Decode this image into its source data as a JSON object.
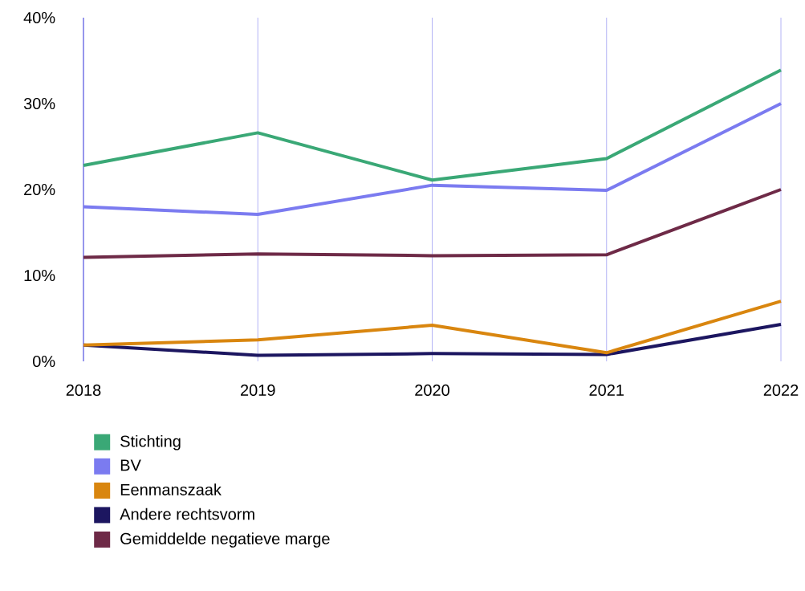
{
  "chart_data": {
    "type": "line",
    "categories": [
      "2018",
      "2019",
      "2020",
      "2021",
      "2022"
    ],
    "series": [
      {
        "name": "Stichting",
        "color": "#3aa876",
        "values": [
          22.8,
          26.6,
          21.1,
          23.6,
          33.9
        ]
      },
      {
        "name": "BV",
        "color": "#7b7bf0",
        "values": [
          18.0,
          17.1,
          20.5,
          19.9,
          30.0
        ]
      },
      {
        "name": "Eenmanszaak",
        "color": "#d9860f",
        "values": [
          1.9,
          2.5,
          4.2,
          1.0,
          7.0
        ]
      },
      {
        "name": "Andere rechtsvorm",
        "color": "#1c1660",
        "values": [
          1.9,
          0.7,
          0.9,
          0.8,
          4.3
        ]
      },
      {
        "name": "Gemiddelde negatieve marge",
        "color": "#6e2a47",
        "values": [
          12.1,
          12.5,
          12.3,
          12.4,
          20.0
        ]
      }
    ],
    "ylim": [
      0,
      40
    ],
    "yticks": [
      {
        "value": 0,
        "label": "0%"
      },
      {
        "value": 10,
        "label": "10%"
      },
      {
        "value": 20,
        "label": "20%"
      },
      {
        "value": 30,
        "label": "30%"
      },
      {
        "value": 40,
        "label": "40%"
      }
    ],
    "grid": "x",
    "legend": "bottom",
    "marker": "none",
    "line_style": "solid"
  }
}
